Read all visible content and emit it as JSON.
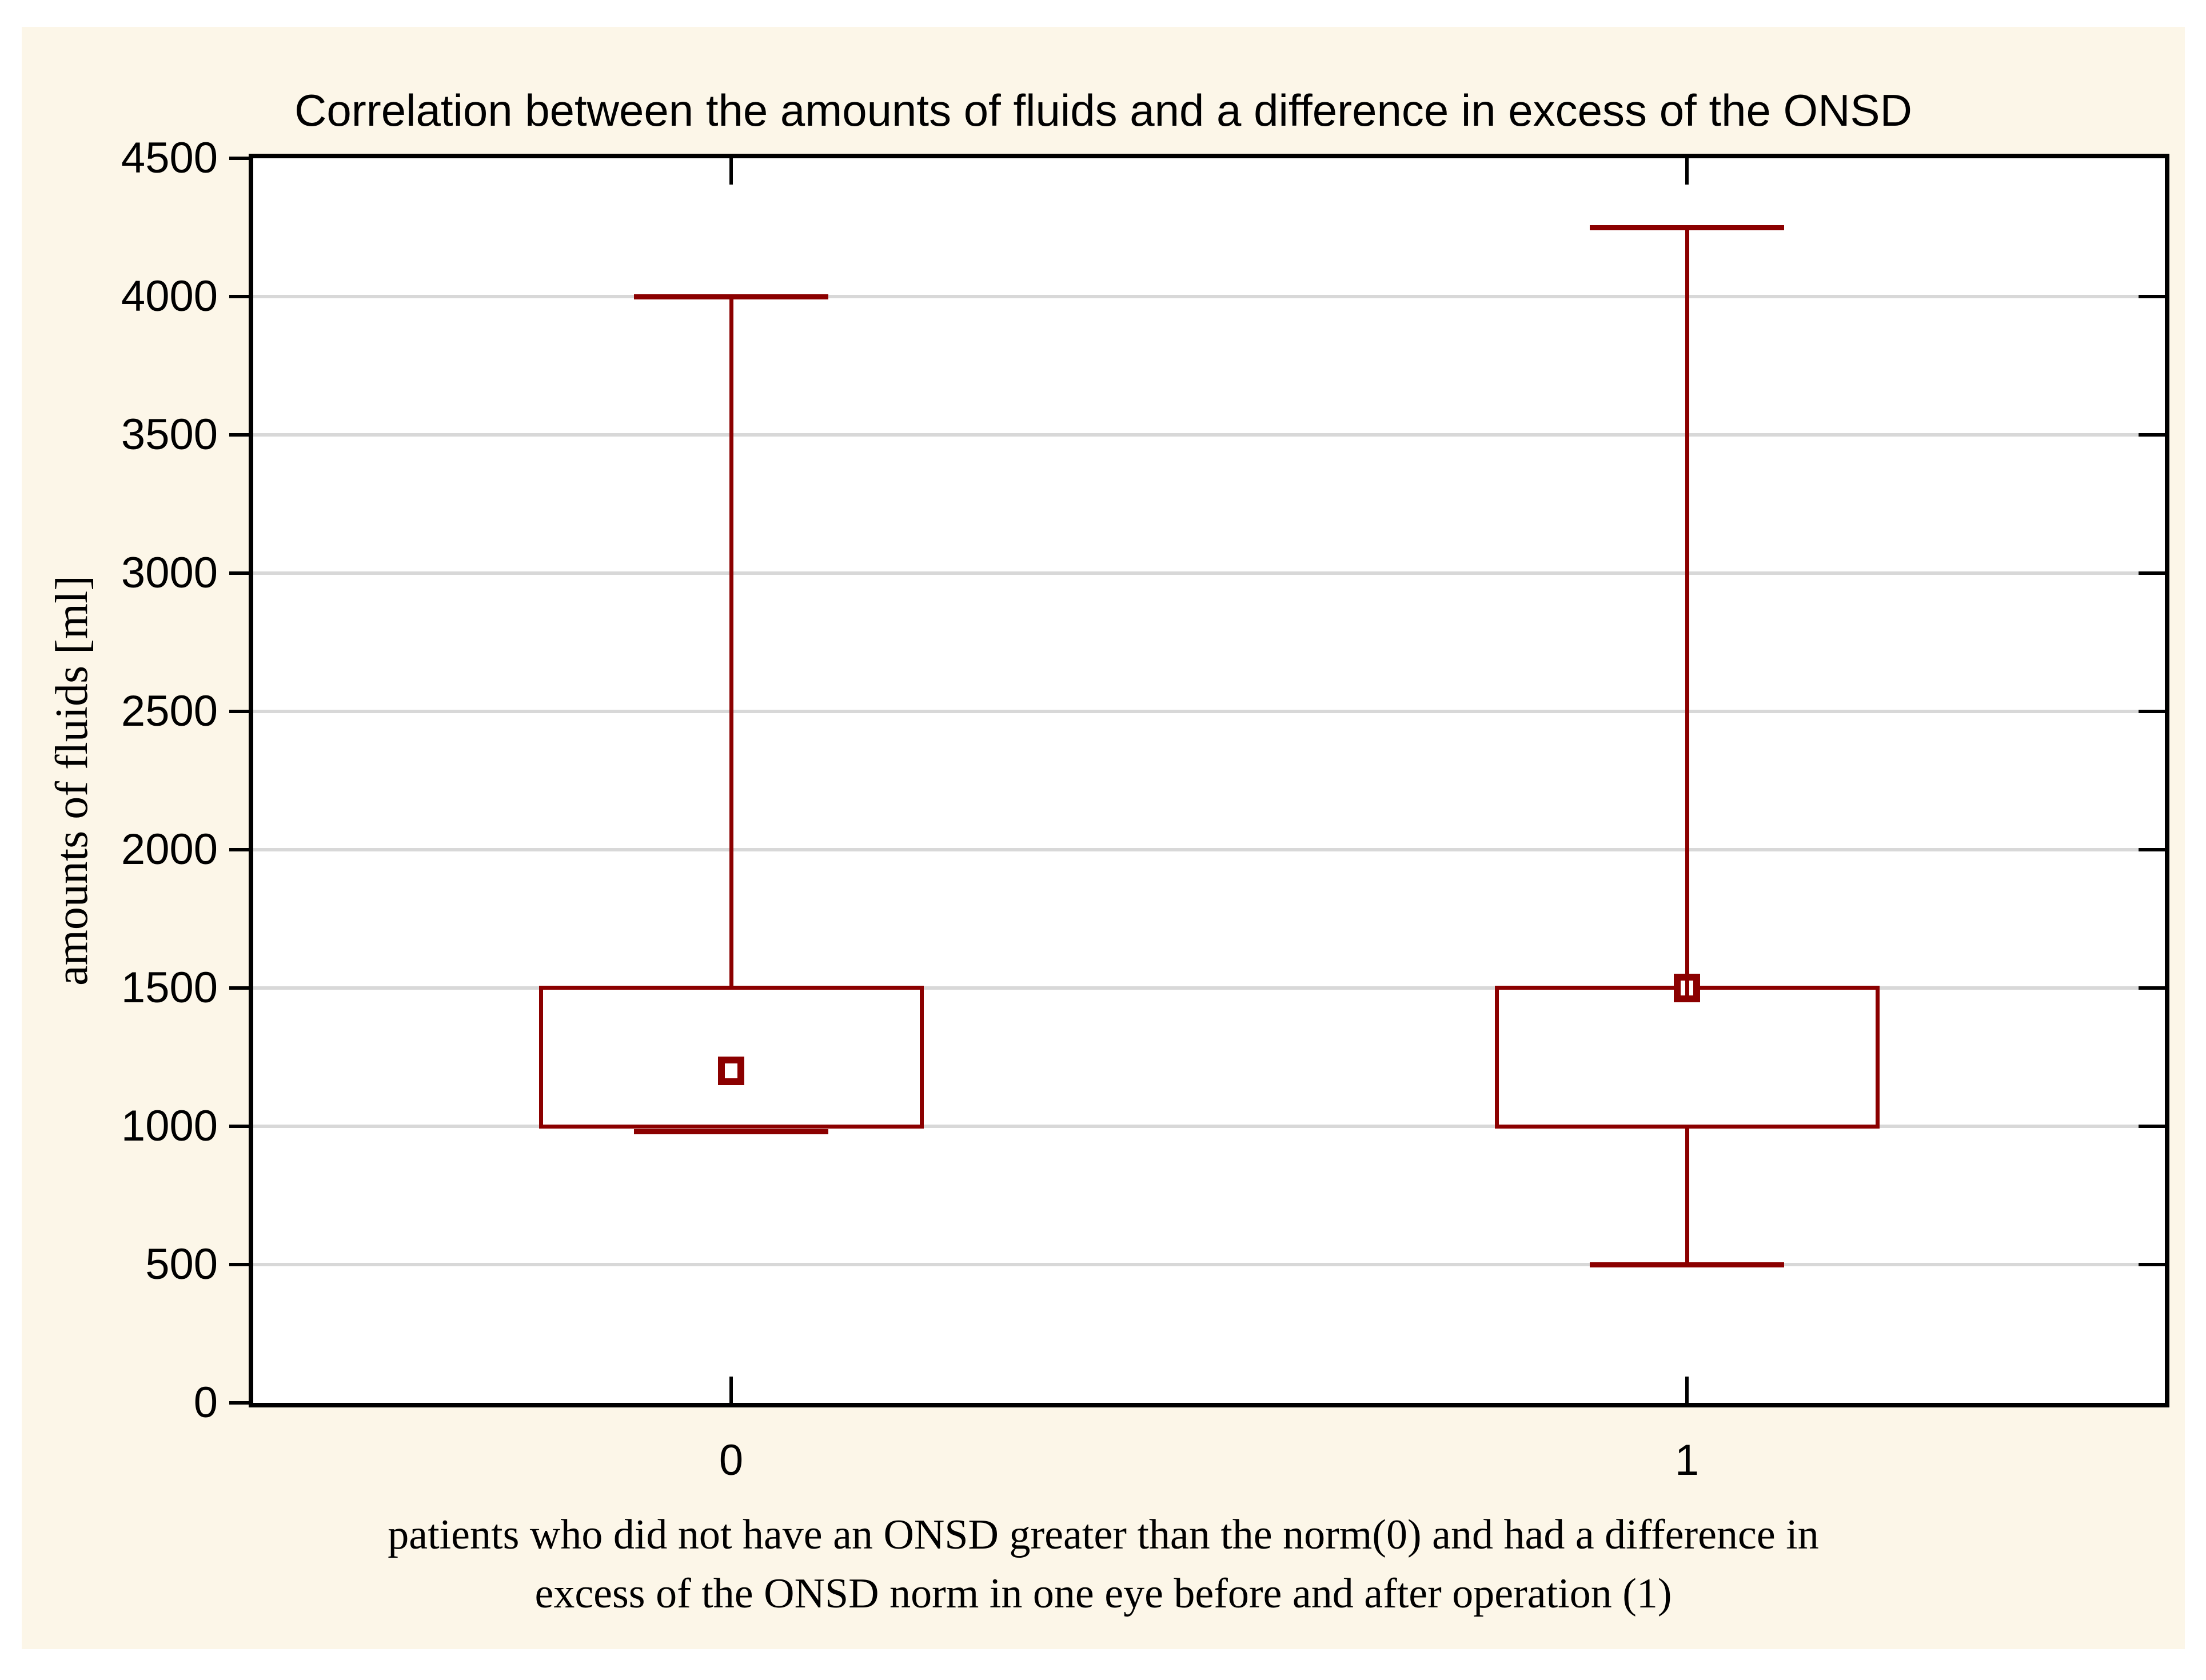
{
  "page": {
    "background": "#FFFFFF",
    "panel_background": "#FCF6E8"
  },
  "chart_data": {
    "type": "box",
    "title": "Correlation between the amounts of fluids and a difference in excess of the ONSD",
    "ylabel": "amounts of fluids [ml]",
    "xlabel_lines": [
      "patients who did not have an ONSD greater than the norm(0) and had a difference in",
      "excess of the ONSD norm in one eye before and after operation (1)"
    ],
    "categories": [
      "0",
      "1"
    ],
    "ylim": [
      0,
      4500
    ],
    "ytick_interval": 500,
    "ytick_labels": [
      "0",
      "500",
      "1000",
      "1500",
      "2000",
      "2500",
      "3000",
      "3500",
      "4000",
      "4500"
    ],
    "grid": true,
    "legend": false,
    "boxes": [
      {
        "category": "0",
        "q1": 1000,
        "q3": 1500,
        "median": 1200,
        "whisker_low": 1000,
        "whisker_high": 4000
      },
      {
        "category": "1",
        "q1": 1000,
        "q3": 1500,
        "median": 1500,
        "whisker_low": 500,
        "whisker_high": 4250
      }
    ],
    "colors": {
      "box_line": "#8B0000",
      "marker_fill": "#FFFFFF",
      "grid_line": "#D8D8D8",
      "axis_line": "#000000",
      "plot_background": "#FFFFFF",
      "panel_background": "#FCF6E8",
      "text": "#000000"
    }
  }
}
